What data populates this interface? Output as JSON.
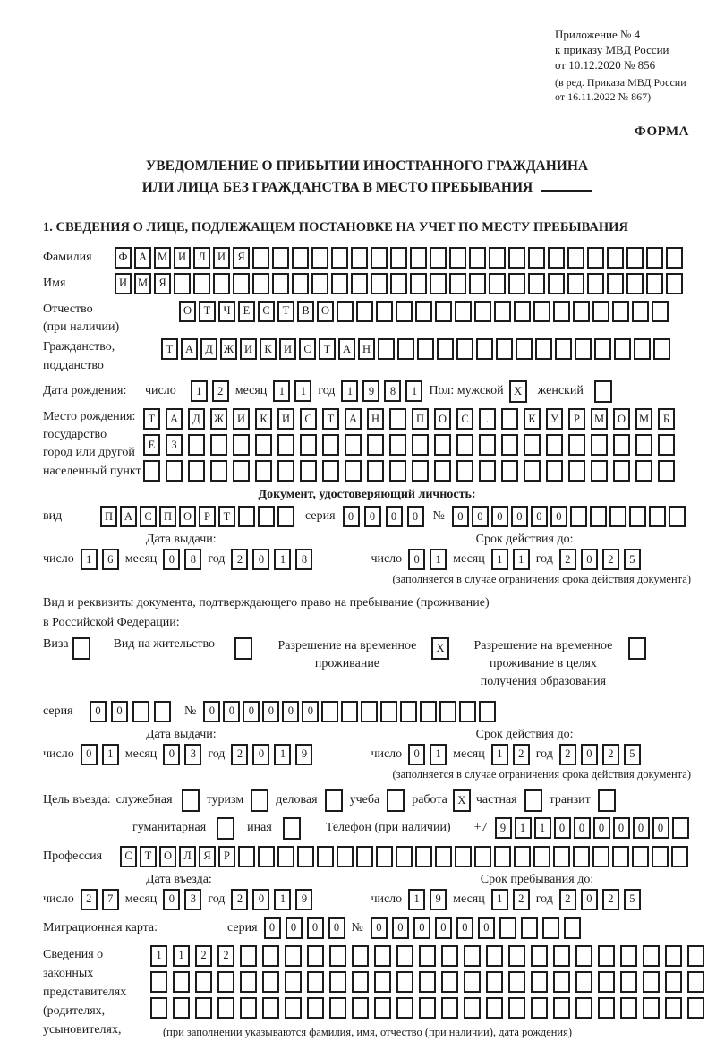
{
  "annex": {
    "line1": "Приложение № 4",
    "line2": "к приказу МВД России",
    "line3": "от 10.12.2020 № 856",
    "amend1": "(в ред. Приказа МВД России",
    "amend2": "от 16.11.2022 № 867)"
  },
  "forma": "ФОРМА",
  "title": {
    "line1": "УВЕДОМЛЕНИЕ О ПРИБЫТИИ ИНОСТРАННОГО ГРАЖДАНИНА",
    "line2": "ИЛИ ЛИЦА БЕЗ ГРАЖДАНСТВА В МЕСТО ПРЕБЫВАНИЯ"
  },
  "section1_heading": "1. СВЕДЕНИЯ О ЛИЦЕ, ПОДЛЕЖАЩЕМ ПОСТАНОВКЕ НА УЧЕТ ПО МЕСТУ ПРЕБЫВАНИЯ",
  "labels": {
    "surname": "Фамилия",
    "name": "Имя",
    "patronymic1": "Отчество",
    "patronymic2": "(при наличии)",
    "citizenship1": "Гражданство,",
    "citizenship2": "подданство",
    "birth_date": "Дата рождения:",
    "day": "число",
    "month": "месяц",
    "year": "год",
    "sex": "Пол: мужской",
    "female": "женский",
    "birth_place1": "Место рождения:",
    "birth_place2": "государство",
    "birth_place3": "город или другой",
    "birth_place4": "населенный пункт",
    "doc_header": "Документ, удостоверяющий личность:",
    "doc_kind": "вид",
    "series": "серия",
    "number": "№",
    "issue_date": "Дата выдачи:",
    "valid_until": "Срок действия до:",
    "valid_note": "(заполняется в случае ограничения срока действия документа)",
    "stay_doc1": "Вид и реквизиты документа, подтверждающего право на пребывание (проживание)",
    "stay_doc2": "в Российской Федерации:",
    "purpose": "Цель въезда:",
    "phone": "Телефон (при наличии)",
    "phone_prefix": "+7",
    "profession": "Профессия",
    "entry_date": "Дата въезда:",
    "stay_until": "Срок пребывания до:",
    "migration_card": "Миграционная карта:",
    "rep1": "Сведения о",
    "rep2": "законных",
    "rep3": "представителях",
    "rep4": "(родителях,",
    "rep5": "усыновителях,",
    "rep6": "попечителях)",
    "rep_note": "(при заполнении указываются фамилия, имя, отчество (при наличии), дата рождения)"
  },
  "fields": {
    "surname": {
      "text": "ФАМИЛИЯ",
      "total": 29
    },
    "name": {
      "text": "ИМЯ",
      "total": 29
    },
    "patronymic": {
      "text": "ОТЧЕСТВО",
      "total": 25
    },
    "citizenship": {
      "text": "ТАДЖИКИСТАН",
      "total": 26
    },
    "birth": {
      "day": {
        "text": "12",
        "total": 2
      },
      "month": {
        "text": "11",
        "total": 2
      },
      "year": {
        "text": "1981",
        "total": 4
      }
    },
    "sex": {
      "male": true,
      "female": false
    },
    "birth_place_rows": [
      {
        "text": "ТАДЖИКИСТАН ПОС. КУРМОМБ",
        "total": 24
      },
      {
        "text": "ЕЗ",
        "total": 24
      },
      {
        "text": "",
        "total": 24
      }
    ],
    "id_doc": {
      "kind": {
        "text": "ПАСПОРТ",
        "total": 10
      },
      "series": {
        "text": "0000",
        "total": 4
      },
      "number": {
        "text": "000000",
        "total": 12
      },
      "issue": {
        "day": {
          "text": "16",
          "total": 2
        },
        "month": {
          "text": "08",
          "total": 2
        },
        "year": {
          "text": "2018",
          "total": 4
        }
      },
      "valid": {
        "day": {
          "text": "01",
          "total": 2
        },
        "month": {
          "text": "11",
          "total": 2
        },
        "year": {
          "text": "2025",
          "total": 4
        }
      }
    },
    "stay_doc": {
      "options": [
        {
          "label": "Виза",
          "checked": false
        },
        {
          "label": "Вид на жительство",
          "checked": false
        },
        {
          "label": "Разрешение на временное проживание",
          "checked": true
        },
        {
          "label": "Разрешение на временное проживание в целях получения образования",
          "checked": false
        }
      ],
      "series": {
        "text": "00",
        "total": 4
      },
      "number": {
        "text": "000000",
        "total": 15
      },
      "issue": {
        "day": {
          "text": "01",
          "total": 2
        },
        "month": {
          "text": "03",
          "total": 2
        },
        "year": {
          "text": "2019",
          "total": 4
        }
      },
      "valid": {
        "day": {
          "text": "01",
          "total": 2
        },
        "month": {
          "text": "12",
          "total": 2
        },
        "year": {
          "text": "2025",
          "total": 4
        }
      }
    },
    "purpose": {
      "row1": [
        {
          "label": "служебная",
          "checked": false
        },
        {
          "label": "туризм",
          "checked": false
        },
        {
          "label": "деловая",
          "checked": false
        },
        {
          "label": "учеба",
          "checked": false
        },
        {
          "label": "работа",
          "checked": true
        },
        {
          "label": "частная",
          "checked": false
        },
        {
          "label": "транзит",
          "checked": false
        }
      ],
      "row2": [
        {
          "label": "гуманитарная",
          "checked": false
        },
        {
          "label": "иная",
          "checked": false
        }
      ]
    },
    "phone": {
      "text": "911000000",
      "total": 10
    },
    "profession": {
      "text": "СТОЛЯР",
      "total": 29
    },
    "entry": {
      "day": {
        "text": "27",
        "total": 2
      },
      "month": {
        "text": "03",
        "total": 2
      },
      "year": {
        "text": "2019",
        "total": 4
      }
    },
    "stay": {
      "day": {
        "text": "19",
        "total": 2
      },
      "month": {
        "text": "12",
        "total": 2
      },
      "year": {
        "text": "2025",
        "total": 4
      }
    },
    "migration_card": {
      "series": {
        "text": "0000",
        "total": 4
      },
      "number": {
        "text": "000000",
        "total": 10
      }
    },
    "representatives_rows": [
      {
        "text": "1122",
        "total": 25
      },
      {
        "text": "",
        "total": 25
      },
      {
        "text": "",
        "total": 25
      }
    ]
  }
}
